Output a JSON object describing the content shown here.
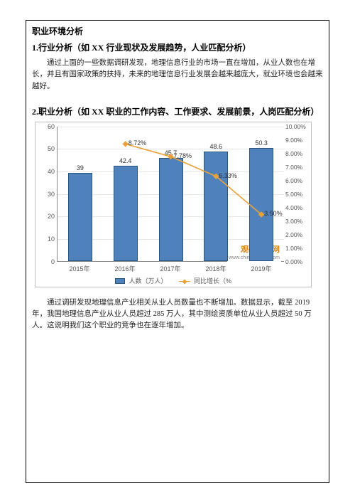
{
  "title": "职业环境分析",
  "section1": {
    "heading": "1.行业分析（如 XX 行业现状及发展趋势，人业匹配分析）",
    "body": "通过上面的一些数据调研发现，地理信息行业的市场一直在增加，从业人数也在增长，并且有国家政策的扶持，未来的地理信息行业发展会越来越庞大，就业环境也会越来越好。"
  },
  "section2": {
    "heading": "2.职业分析（如 XX 职业的工作内容、工作要求、发展前景，人岗匹配分析）",
    "body": "通过调研发现地理信息产业相关从业人员数量也不断增加。数据显示，截至 2019 年，我国地理信息产业从业人员超过 285 万人，其中测绘资质单位从业人员超过 50 万人。这说明我们这个职业的竞争也在逐年增加。"
  },
  "chart": {
    "type": "bar+line",
    "categories": [
      "2015年",
      "2016年",
      "2017年",
      "2018年",
      "2019年"
    ],
    "bar_values": [
      39,
      42.4,
      45.7,
      48.6,
      50.3
    ],
    "line_values": [
      null,
      8.72,
      7.78,
      6.33,
      3.5
    ],
    "line_labels": [
      "",
      "8.72%",
      "7.78%",
      "6.33%",
      "3.50%"
    ],
    "y_left_max": 60,
    "y_left_step": 10,
    "y_right_max": 10,
    "y_right_step": 1,
    "y_right_suffix": ".00%",
    "bar_fill": "#4f81bd",
    "bar_border": "#2a557a",
    "line_color": "#e9a23b",
    "grid_color": "#e6e6e6",
    "axis_color": "#888888",
    "tick_font": 9,
    "legend_bar": "人数（万人）",
    "legend_line": "同比增长（%",
    "watermark_cn": "观研报告网",
    "watermark_url": "www.chinabaogao.com"
  }
}
